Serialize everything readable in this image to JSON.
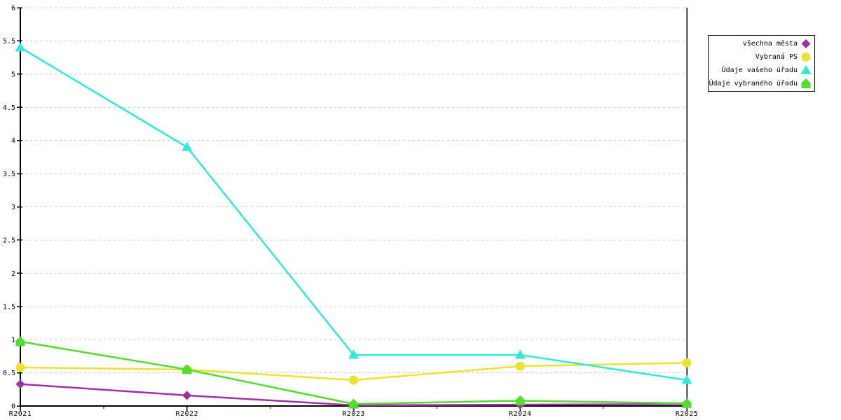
{
  "chart_data": {
    "type": "line",
    "title": "",
    "xlabel": "",
    "ylabel": "",
    "categories": [
      "R2021",
      "R2022",
      "R2023",
      "R2024",
      "R2025"
    ],
    "series": [
      {
        "name": "všechna města",
        "color": "#9F30A5",
        "marker": "diamond",
        "values": [
          0.33,
          0.16,
          0.01,
          0.02,
          0.03
        ]
      },
      {
        "name": "Vybraná PS",
        "color": "#EDE32F",
        "marker": "circle",
        "values": [
          0.58,
          0.55,
          0.39,
          0.6,
          0.65
        ]
      },
      {
        "name": "Údaje vašeho úřadu",
        "color": "#2FE9D9",
        "marker": "triangle-up",
        "values": [
          5.4,
          3.9,
          0.77,
          0.77,
          0.39
        ]
      },
      {
        "name": "Údaje vybraného úřadu",
        "color": "#52DC2C",
        "marker": "pentagon",
        "values": [
          0.97,
          0.55,
          0.03,
          0.08,
          0.04
        ]
      }
    ],
    "ylim": [
      0,
      6
    ],
    "ytick_step": 0.5,
    "yticks": [
      "0",
      "0.5",
      "1",
      "1.5",
      "2",
      "2.5",
      "3",
      "3.5",
      "4",
      "4.5",
      "5",
      "5.5",
      "6"
    ],
    "grid": "horizontal-dashed",
    "grid_color": "#C9C9C9",
    "axis_color": "#000000",
    "background": "#FFFFFF",
    "legend_position": "top-right-outside"
  }
}
